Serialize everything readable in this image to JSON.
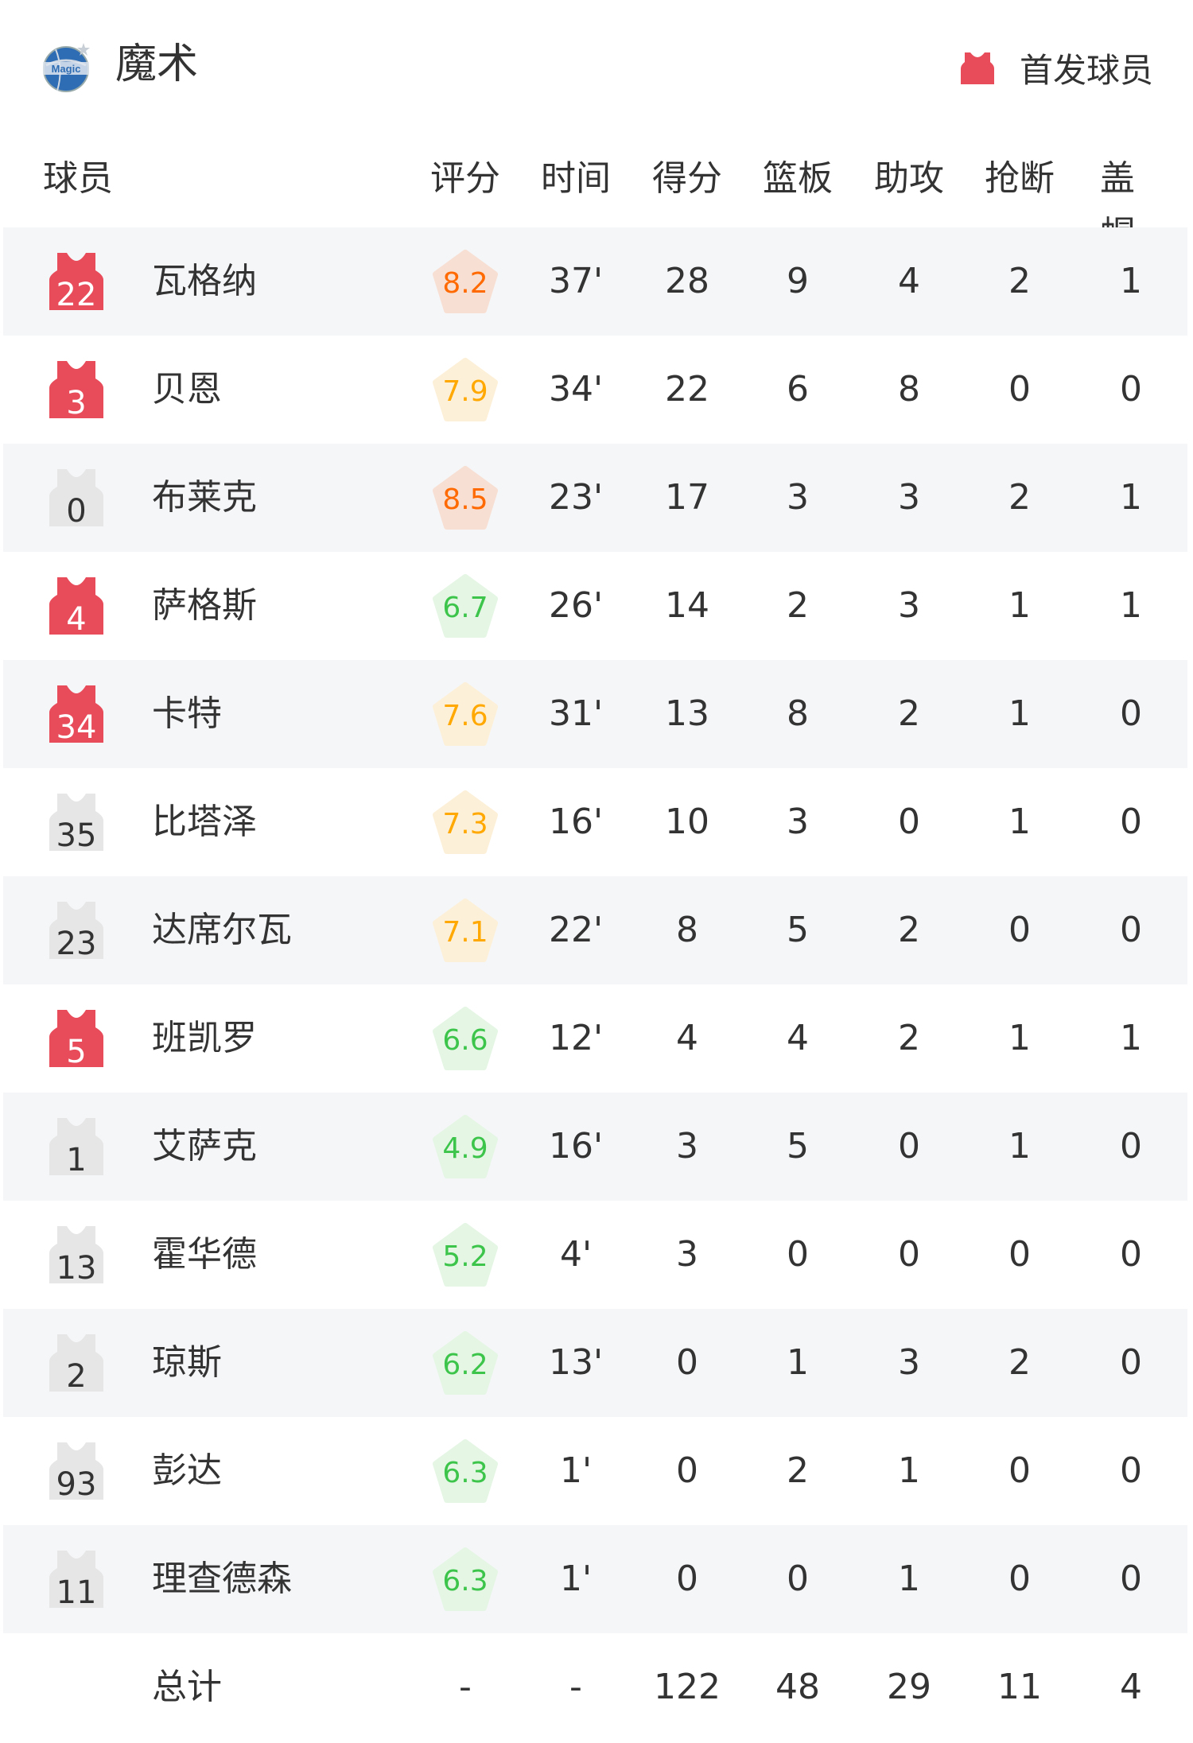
{
  "team": {
    "name": "魔术",
    "logo_text": "Magic"
  },
  "legend": {
    "label": "首发球员",
    "icon": "jersey-icon"
  },
  "colors": {
    "starter": "#e84c5b",
    "bench": "#e6e6e6",
    "rating_high": {
      "text": "#ff6a00",
      "bg": "#f8dfd3"
    },
    "rating_mid": {
      "text": "#ffa800",
      "bg": "#fdf0d8"
    },
    "rating_low": {
      "text": "#3cc54a",
      "bg": "#e5f6e5"
    }
  },
  "columns": [
    "球员",
    "评分",
    "时间",
    "得分",
    "篮板",
    "助攻",
    "抢断",
    "盖帽"
  ],
  "players": [
    {
      "number": "22",
      "starter": true,
      "name": "瓦格纳",
      "rating": "8.2",
      "time": "37'",
      "pts": "28",
      "reb": "9",
      "ast": "4",
      "stl": "2",
      "blk": "1"
    },
    {
      "number": "3",
      "starter": true,
      "name": "贝恩",
      "rating": "7.9",
      "time": "34'",
      "pts": "22",
      "reb": "6",
      "ast": "8",
      "stl": "0",
      "blk": "0"
    },
    {
      "number": "0",
      "starter": false,
      "name": "布莱克",
      "rating": "8.5",
      "time": "23'",
      "pts": "17",
      "reb": "3",
      "ast": "3",
      "stl": "2",
      "blk": "1"
    },
    {
      "number": "4",
      "starter": true,
      "name": "萨格斯",
      "rating": "6.7",
      "time": "26'",
      "pts": "14",
      "reb": "2",
      "ast": "3",
      "stl": "1",
      "blk": "1"
    },
    {
      "number": "34",
      "starter": true,
      "name": "卡特",
      "rating": "7.6",
      "time": "31'",
      "pts": "13",
      "reb": "8",
      "ast": "2",
      "stl": "1",
      "blk": "0"
    },
    {
      "number": "35",
      "starter": false,
      "name": "比塔泽",
      "rating": "7.3",
      "time": "16'",
      "pts": "10",
      "reb": "3",
      "ast": "0",
      "stl": "1",
      "blk": "0"
    },
    {
      "number": "23",
      "starter": false,
      "name": "达席尔瓦",
      "rating": "7.1",
      "time": "22'",
      "pts": "8",
      "reb": "5",
      "ast": "2",
      "stl": "0",
      "blk": "0"
    },
    {
      "number": "5",
      "starter": true,
      "name": "班凯罗",
      "rating": "6.6",
      "time": "12'",
      "pts": "4",
      "reb": "4",
      "ast": "2",
      "stl": "1",
      "blk": "1"
    },
    {
      "number": "1",
      "starter": false,
      "name": "艾萨克",
      "rating": "4.9",
      "time": "16'",
      "pts": "3",
      "reb": "5",
      "ast": "0",
      "stl": "1",
      "blk": "0"
    },
    {
      "number": "13",
      "starter": false,
      "name": "霍华德",
      "rating": "5.2",
      "time": "4'",
      "pts": "3",
      "reb": "0",
      "ast": "0",
      "stl": "0",
      "blk": "0"
    },
    {
      "number": "2",
      "starter": false,
      "name": "琼斯",
      "rating": "6.2",
      "time": "13'",
      "pts": "0",
      "reb": "1",
      "ast": "3",
      "stl": "2",
      "blk": "0"
    },
    {
      "number": "93",
      "starter": false,
      "name": "彭达",
      "rating": "6.3",
      "time": "1'",
      "pts": "0",
      "reb": "2",
      "ast": "1",
      "stl": "0",
      "blk": "0"
    },
    {
      "number": "11",
      "starter": false,
      "name": "理查德森",
      "rating": "6.3",
      "time": "1'",
      "pts": "0",
      "reb": "0",
      "ast": "1",
      "stl": "0",
      "blk": "0"
    }
  ],
  "total": {
    "label": "总计",
    "rating": "-",
    "time": "-",
    "pts": "122",
    "reb": "48",
    "ast": "29",
    "stl": "11",
    "blk": "4"
  }
}
